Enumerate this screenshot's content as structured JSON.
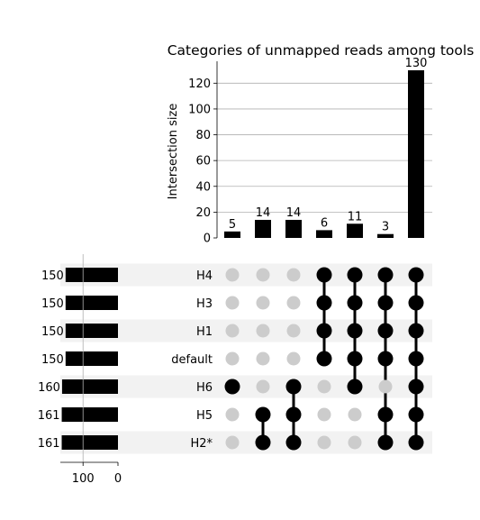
{
  "chart_data": {
    "type": "upset",
    "title": "Categories of unmapped reads among tools",
    "ylabel": "Intersection size",
    "ylim": [
      0,
      137
    ],
    "y_ticks": [
      0,
      20,
      40,
      60,
      80,
      100,
      120
    ],
    "sets": [
      {
        "name": "H4",
        "size": 150
      },
      {
        "name": "H3",
        "size": 150
      },
      {
        "name": "H1",
        "size": 150
      },
      {
        "name": "default",
        "size": 150
      },
      {
        "name": "H6",
        "size": 160
      },
      {
        "name": "H5",
        "size": 161
      },
      {
        "name": "H2*",
        "size": 161
      }
    ],
    "set_size_ticks": [
      100,
      0
    ],
    "set_size_max": 165,
    "intersections": [
      {
        "value": 5,
        "members": [
          "H6"
        ]
      },
      {
        "value": 14,
        "members": [
          "H5",
          "H2*"
        ]
      },
      {
        "value": 14,
        "members": [
          "H6",
          "H5",
          "H2*"
        ]
      },
      {
        "value": 6,
        "members": [
          "H4",
          "H3",
          "H1",
          "default"
        ]
      },
      {
        "value": 11,
        "members": [
          "H4",
          "H3",
          "H1",
          "default",
          "H6"
        ]
      },
      {
        "value": 3,
        "members": [
          "H4",
          "H3",
          "H1",
          "default",
          "H5",
          "H2*"
        ]
      },
      {
        "value": 130,
        "members": [
          "H4",
          "H3",
          "H1",
          "default",
          "H6",
          "H5",
          "H2*"
        ]
      }
    ],
    "grid": true,
    "colors": {
      "bar": "#000000",
      "dot_active": "#000000",
      "dot_inactive": "#cccccc",
      "stripe": "#f2f2f2",
      "grid": "#b0b0b0"
    }
  }
}
